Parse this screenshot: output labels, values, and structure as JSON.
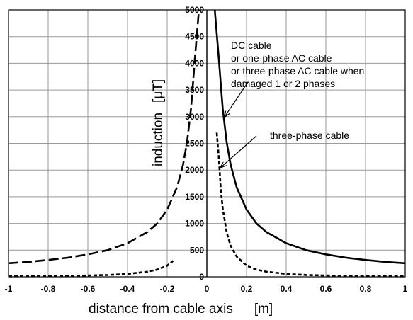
{
  "chart_data": {
    "type": "line",
    "xlabel": "distance from cable axis",
    "xunit": "[m]",
    "ylabel": "induction",
    "yunit": "[μT]",
    "xlim": [
      -1,
      1
    ],
    "ylim": [
      0,
      5000
    ],
    "grid": true,
    "x_ticks": [
      "-1",
      "-0.8",
      "-0.6",
      "-0.4",
      "-0.2",
      "0",
      "0.2",
      "0.4",
      "0.6",
      "0.8",
      "1"
    ],
    "y_ticks": [
      "0",
      "500",
      "1000",
      "1500",
      "2000",
      "2500",
      "3000",
      "3500",
      "4000",
      "4500",
      "5000"
    ],
    "series": [
      {
        "style": "solid",
        "x": [
          0.04,
          0.06,
          0.08,
          0.1,
          0.12,
          0.15,
          0.2,
          0.25,
          0.3,
          0.4,
          0.5,
          0.6,
          0.7,
          0.8,
          0.9,
          1.0
        ],
        "y": [
          5000,
          4100,
          3150,
          2520,
          2100,
          1680,
          1260,
          1000,
          840,
          630,
          500,
          420,
          360,
          315,
          280,
          255
        ]
      },
      {
        "style": "long-dash",
        "x": [
          -1.0,
          -0.9,
          -0.8,
          -0.7,
          -0.6,
          -0.5,
          -0.4,
          -0.3,
          -0.25,
          -0.2,
          -0.15,
          -0.12,
          -0.1,
          -0.08,
          -0.06,
          -0.04
        ],
        "y": [
          255,
          280,
          315,
          360,
          420,
          500,
          630,
          840,
          1000,
          1260,
          1680,
          2100,
          2520,
          3150,
          4100,
          5000
        ]
      },
      {
        "style": "short-dash",
        "x": [
          0.05,
          0.06,
          0.07,
          0.08,
          0.1,
          0.12,
          0.15,
          0.2,
          0.25,
          0.3,
          0.4,
          0.5,
          0.6,
          0.7,
          0.8,
          0.9,
          1.0
        ],
        "y": [
          2700,
          2250,
          1650,
          1280,
          830,
          580,
          380,
          210,
          135,
          95,
          55,
          35,
          25,
          18,
          14,
          11,
          9
        ]
      },
      {
        "style": "short-dash",
        "x": [
          -1.0,
          -0.9,
          -0.8,
          -0.7,
          -0.6,
          -0.5,
          -0.4,
          -0.3,
          -0.25,
          -0.2,
          -0.17
        ],
        "y": [
          9,
          11,
          14,
          18,
          25,
          35,
          55,
          95,
          135,
          210,
          300
        ]
      }
    ],
    "annotations": [
      {
        "lines": [
          "DC cable",
          "or one-phase AC cable",
          "or three-phase AC cable when",
          "damaged 1 or 2 phases"
        ],
        "arrow_to": [
          0.09,
          3000
        ]
      },
      {
        "lines": [
          "three-phase cable"
        ],
        "arrow_to": [
          0.07,
          2050
        ]
      }
    ]
  }
}
